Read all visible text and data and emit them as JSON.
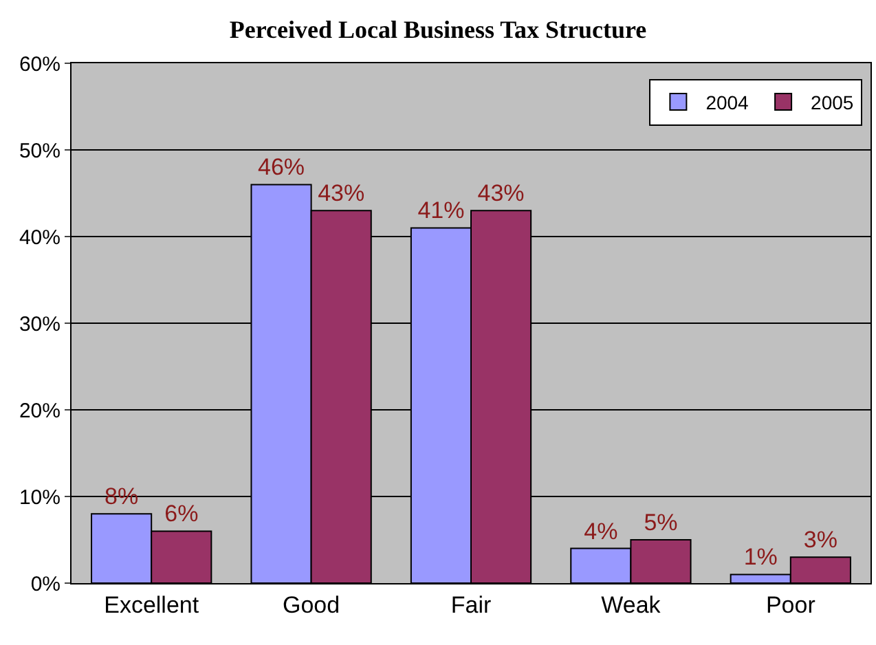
{
  "chart_data": {
    "type": "bar",
    "title": "Perceived Local Business Tax Structure",
    "categories": [
      "Excellent",
      "Good",
      "Fair",
      "Weak",
      "Poor"
    ],
    "series": [
      {
        "name": "2004",
        "color": "#9999ff",
        "values": [
          8,
          46,
          41,
          4,
          1
        ],
        "value_labels": [
          "8%",
          "46%",
          "41%",
          "4%",
          "1%"
        ]
      },
      {
        "name": "2005",
        "color": "#993366",
        "values": [
          6,
          43,
          43,
          5,
          3
        ],
        "value_labels": [
          "6%",
          "43%",
          "43%",
          "5%",
          "3%"
        ]
      }
    ],
    "ylim": [
      0,
      60
    ],
    "yticks": [
      {
        "value": 0,
        "label": "0%"
      },
      {
        "value": 10,
        "label": "10%"
      },
      {
        "value": 20,
        "label": "20%"
      },
      {
        "value": 30,
        "label": "30%"
      },
      {
        "value": 40,
        "label": "40%"
      },
      {
        "value": 50,
        "label": "50%"
      },
      {
        "value": 60,
        "label": "60%"
      }
    ],
    "grid": "y",
    "legend": "top right"
  }
}
